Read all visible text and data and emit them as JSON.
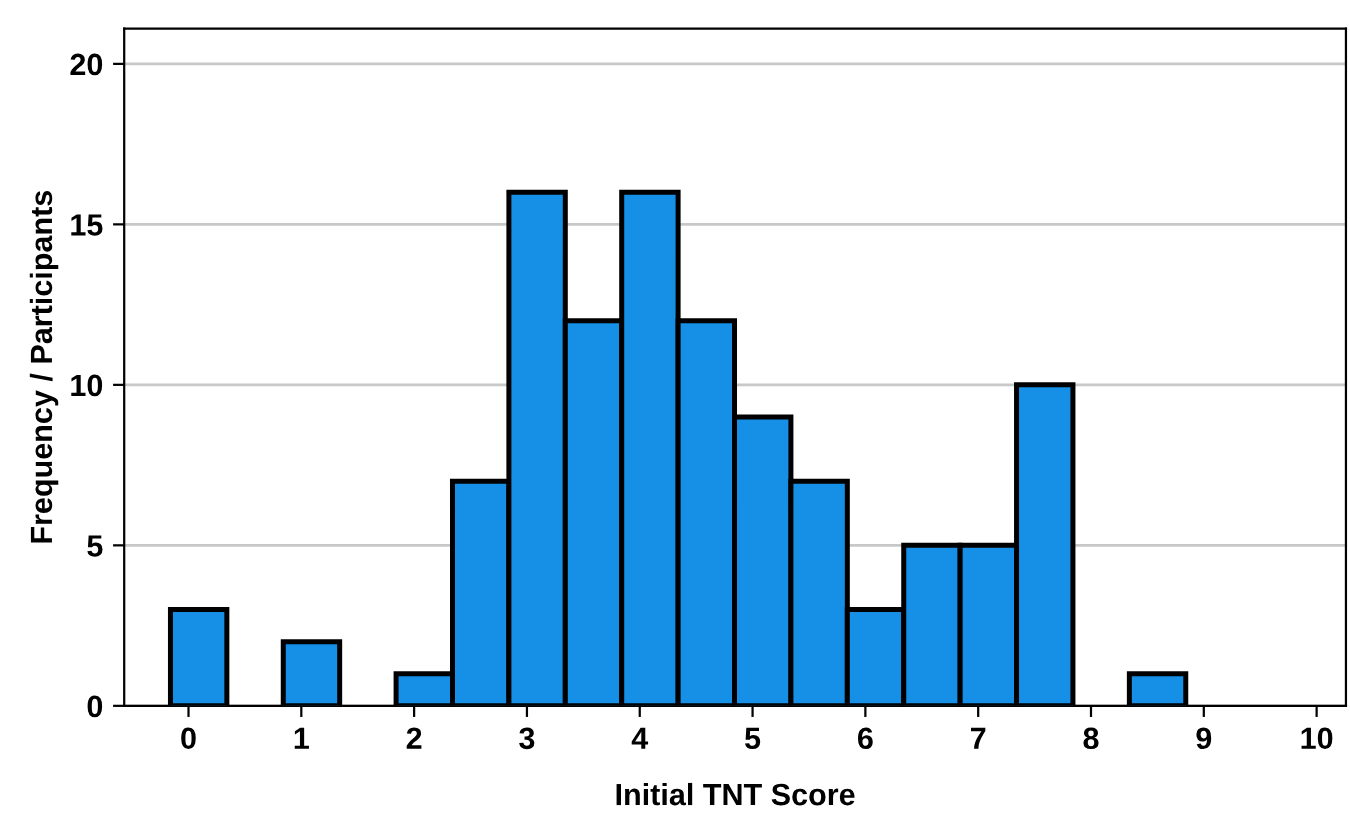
{
  "chart_data": {
    "type": "histogram",
    "xlabel": "Initial TNT Score",
    "ylabel": "Frequency / Participants",
    "bins": [
      -0.16,
      0.34,
      0.84,
      1.34,
      1.84,
      2.34,
      2.84,
      3.34,
      3.84,
      4.34,
      4.84,
      5.34,
      5.84,
      6.34,
      6.84,
      7.34,
      7.84,
      8.34,
      8.84
    ],
    "values": [
      3,
      0,
      2,
      0,
      1,
      7,
      16,
      12,
      16,
      12,
      9,
      7,
      3,
      5,
      5,
      10,
      0,
      1
    ],
    "color": "#1590e6",
    "xlim": [
      -0.57,
      10.26
    ],
    "xticks": [
      0,
      1,
      2,
      3,
      4,
      5,
      6,
      7,
      8,
      9,
      10
    ],
    "ylim": [
      0,
      21.1
    ],
    "yticks": [
      0,
      5,
      10,
      15,
      20
    ],
    "grid": "y"
  }
}
